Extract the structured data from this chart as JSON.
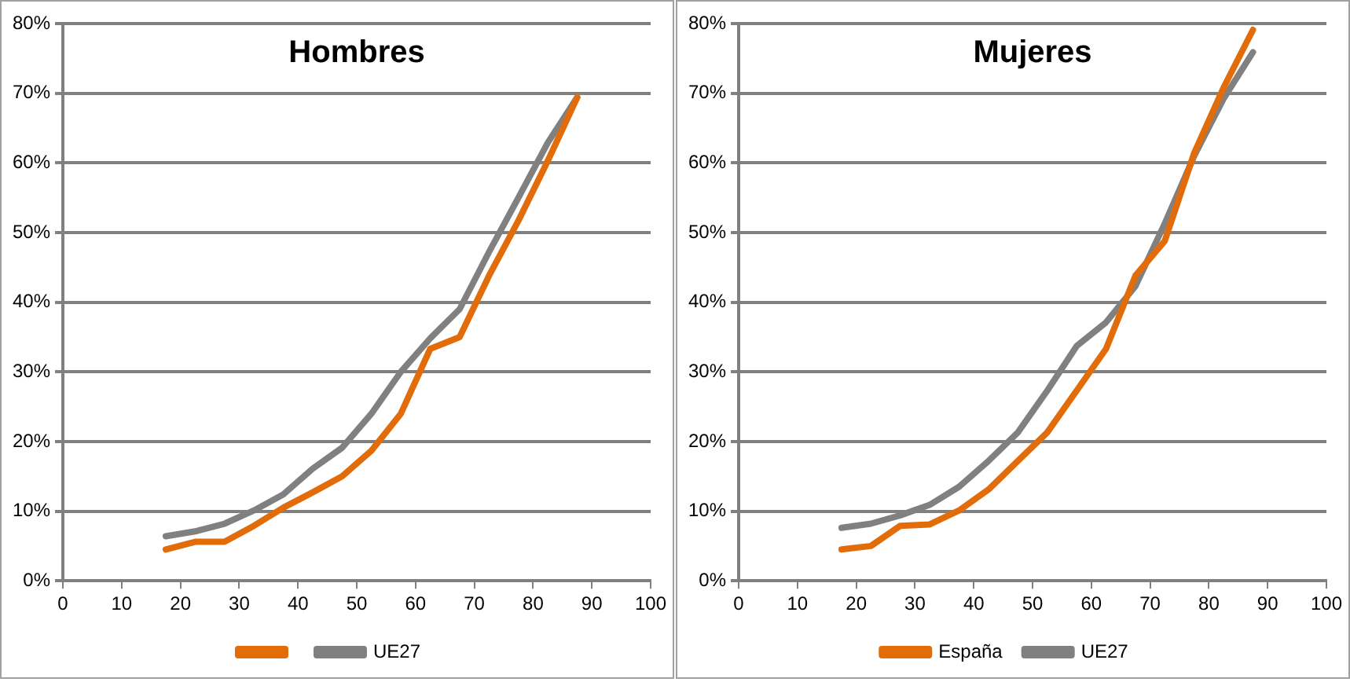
{
  "chart_data": [
    {
      "type": "line",
      "title": "Hombres",
      "x": [
        17.5,
        22.5,
        27.5,
        32.5,
        37.5,
        42.5,
        47.5,
        52.5,
        57.5,
        62.5,
        67.5,
        72.5,
        77.5,
        82.5,
        87.5
      ],
      "series": [
        {
          "color": "#e36c0a",
          "values": [
            4.5,
            5.6,
            5.6,
            7.9,
            10.5,
            12.7,
            15,
            18.7,
            24,
            33.3,
            35,
            43.8,
            51.7,
            60.3,
            69.4
          ]
        },
        {
          "name": "UE27",
          "color": "#808080",
          "values": [
            6.4,
            7.1,
            8.2,
            10.1,
            12.4,
            16.1,
            19.1,
            24,
            30,
            34.8,
            39,
            47.2,
            55,
            62.9,
            69.4
          ]
        }
      ],
      "xlim": [
        0,
        100
      ],
      "xticks": [
        0,
        10,
        20,
        30,
        40,
        50,
        60,
        70,
        80,
        90,
        100
      ],
      "ylim": [
        0,
        80
      ],
      "yticks": [
        {
          "value": 0,
          "label": "0%"
        },
        {
          "value": 10,
          "label": "10%"
        },
        {
          "value": 20,
          "label": "20%"
        },
        {
          "value": 30,
          "label": "30%"
        },
        {
          "value": 40,
          "label": "40%"
        },
        {
          "value": 50,
          "label": "50%"
        },
        {
          "value": 60,
          "label": "60%"
        },
        {
          "value": 70,
          "label": "70%"
        },
        {
          "value": 80,
          "label": "80%"
        }
      ],
      "grid": "y",
      "legend": "bottom",
      "marker": "none",
      "line_style": "solid"
    },
    {
      "type": "line",
      "title": "Mujeres",
      "x": [
        17.5,
        22.5,
        27.5,
        32.5,
        37.5,
        42.5,
        47.5,
        52.5,
        57.5,
        62.5,
        67.5,
        72.5,
        77.5,
        82.5,
        87.5
      ],
      "series": [
        {
          "name": "España",
          "color": "#e36c0a",
          "values": [
            4.5,
            5,
            7.9,
            8.1,
            10.1,
            13.1,
            17.2,
            21.3,
            27.3,
            33.3,
            43.8,
            48.8,
            61.4,
            70.8,
            79.1
          ]
        },
        {
          "name": "UE27",
          "color": "#808080",
          "values": [
            7.6,
            8.2,
            9.4,
            10.9,
            13.5,
            17.2,
            21.3,
            27.3,
            33.7,
            37.1,
            42.3,
            51.3,
            61,
            69.2,
            75.9
          ]
        }
      ],
      "xlim": [
        0,
        100
      ],
      "xticks": [
        0,
        10,
        20,
        30,
        40,
        50,
        60,
        70,
        80,
        90,
        100
      ],
      "ylim": [
        0,
        80
      ],
      "yticks": [
        {
          "value": 0,
          "label": "0%"
        },
        {
          "value": 10,
          "label": "10%"
        },
        {
          "value": 20,
          "label": "20%"
        },
        {
          "value": 30,
          "label": "30%"
        },
        {
          "value": 40,
          "label": "40%"
        },
        {
          "value": 50,
          "label": "50%"
        },
        {
          "value": 60,
          "label": "60%"
        },
        {
          "value": 70,
          "label": "70%"
        },
        {
          "value": 80,
          "label": "80%"
        }
      ],
      "grid": "y",
      "legend": "bottom",
      "marker": "none",
      "line_style": "solid"
    }
  ]
}
